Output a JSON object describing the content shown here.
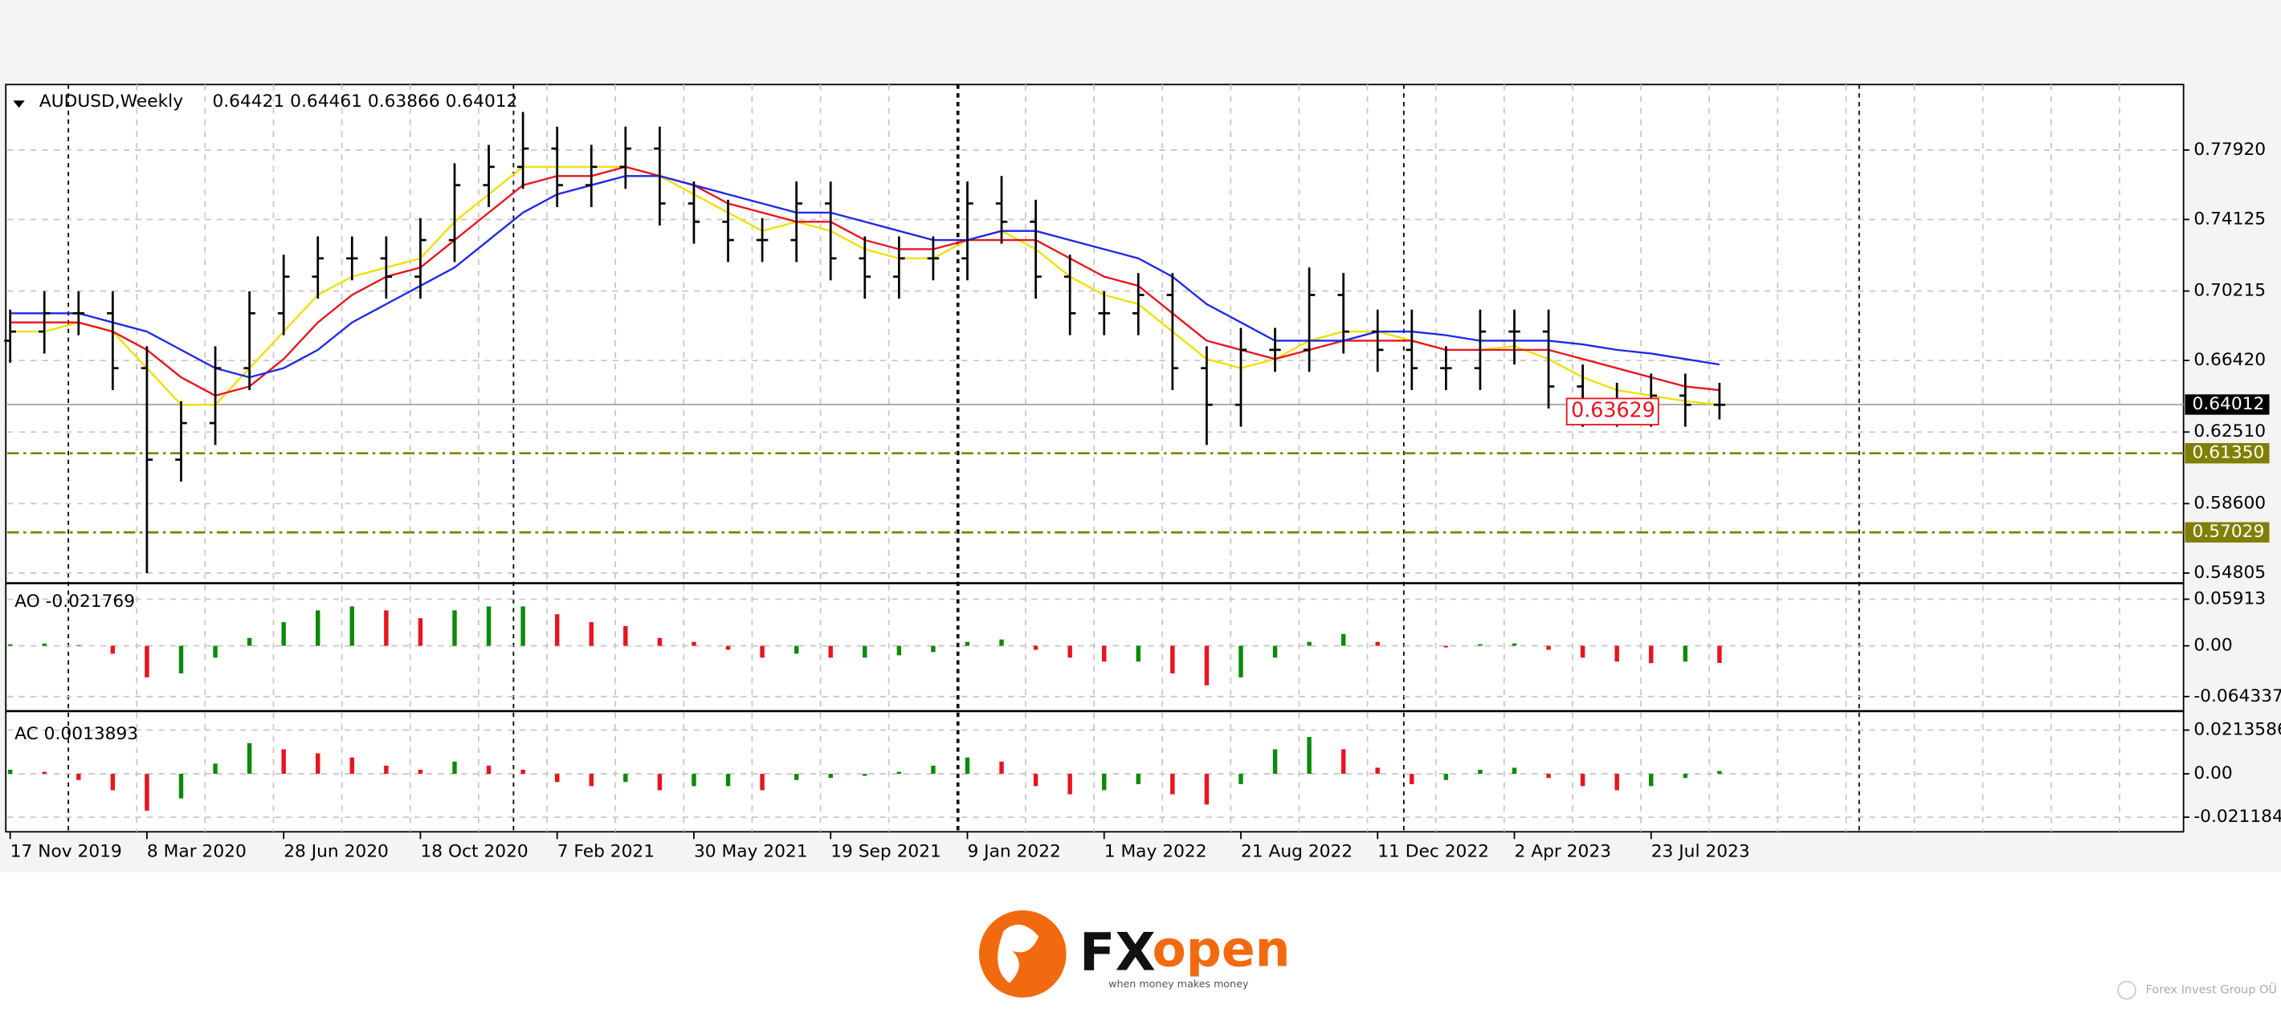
{
  "chart_data": [
    {
      "type": "ohlc",
      "symbol": "AUDUSD,Weekly",
      "ohlc_text": "0.64421 0.64461 0.63866 0.64012",
      "categories": [
        "17 Nov 2019",
        null,
        null,
        null,
        "8 Mar 2020",
        null,
        null,
        null,
        "28 Jun 2020",
        null,
        null,
        null,
        "18 Oct 2020",
        null,
        null,
        null,
        "7 Feb 2021",
        null,
        null,
        null,
        "30 May 2021",
        null,
        null,
        null,
        "19 Sep 2021",
        null,
        null,
        null,
        "9 Jan 2022",
        null,
        null,
        null,
        "1 May 2022",
        null,
        null,
        null,
        "21 Aug 2022",
        null,
        null,
        null,
        "11 Dec 2022",
        null,
        null,
        null,
        "2 Apr 2023",
        null,
        null,
        null,
        "23 Jul 2023",
        null,
        null
      ],
      "open": [
        0.675,
        0.68,
        0.69,
        0.69,
        0.66,
        0.61,
        0.63,
        0.66,
        0.69,
        0.71,
        0.72,
        0.72,
        0.71,
        0.73,
        0.76,
        0.77,
        0.78,
        0.76,
        0.77,
        0.78,
        0.75,
        0.74,
        0.73,
        0.73,
        0.75,
        0.72,
        0.71,
        0.72,
        0.72,
        0.75,
        0.74,
        0.71,
        0.69,
        0.69,
        0.7,
        0.66,
        0.64,
        0.67,
        0.67,
        0.7,
        0.68,
        0.67,
        0.66,
        0.66,
        0.68,
        0.68,
        0.65,
        0.64,
        0.64,
        0.645,
        0.64
      ],
      "high": [
        0.692,
        0.702,
        0.702,
        0.702,
        0.672,
        0.642,
        0.672,
        0.702,
        0.722,
        0.732,
        0.732,
        0.732,
        0.742,
        0.772,
        0.782,
        0.8,
        0.792,
        0.782,
        0.792,
        0.792,
        0.762,
        0.752,
        0.742,
        0.762,
        0.762,
        0.732,
        0.732,
        0.732,
        0.762,
        0.765,
        0.752,
        0.722,
        0.702,
        0.712,
        0.712,
        0.672,
        0.682,
        0.682,
        0.715,
        0.712,
        0.692,
        0.692,
        0.672,
        0.692,
        0.692,
        0.692,
        0.662,
        0.652,
        0.657,
        0.657,
        0.652
      ],
      "low": [
        0.663,
        0.668,
        0.678,
        0.648,
        0.548,
        0.598,
        0.618,
        0.648,
        0.678,
        0.698,
        0.708,
        0.698,
        0.698,
        0.718,
        0.748,
        0.758,
        0.748,
        0.748,
        0.758,
        0.738,
        0.728,
        0.718,
        0.718,
        0.718,
        0.708,
        0.698,
        0.698,
        0.708,
        0.708,
        0.728,
        0.698,
        0.678,
        0.678,
        0.678,
        0.648,
        0.618,
        0.628,
        0.658,
        0.658,
        0.668,
        0.658,
        0.648,
        0.648,
        0.648,
        0.662,
        0.638,
        0.628,
        0.628,
        0.628,
        0.628,
        0.632
      ],
      "close": [
        0.68,
        0.69,
        0.69,
        0.66,
        0.61,
        0.63,
        0.66,
        0.69,
        0.71,
        0.72,
        0.72,
        0.71,
        0.73,
        0.76,
        0.77,
        0.78,
        0.76,
        0.77,
        0.78,
        0.75,
        0.74,
        0.73,
        0.73,
        0.75,
        0.72,
        0.71,
        0.72,
        0.72,
        0.75,
        0.74,
        0.71,
        0.69,
        0.69,
        0.7,
        0.66,
        0.64,
        0.67,
        0.67,
        0.7,
        0.68,
        0.67,
        0.66,
        0.66,
        0.68,
        0.68,
        0.65,
        0.64,
        0.64,
        0.645,
        0.64,
        0.64
      ],
      "series": [
        {
          "color": "#f0e000",
          "values": [
            0.68,
            0.68,
            0.685,
            0.68,
            0.66,
            0.64,
            0.64,
            0.66,
            0.68,
            0.7,
            0.71,
            0.715,
            0.72,
            0.74,
            0.755,
            0.77,
            0.77,
            0.77,
            0.77,
            0.765,
            0.755,
            0.745,
            0.735,
            0.74,
            0.735,
            0.725,
            0.72,
            0.72,
            0.73,
            0.735,
            0.725,
            0.71,
            0.7,
            0.695,
            0.68,
            0.665,
            0.66,
            0.665,
            0.675,
            0.68,
            0.68,
            0.675,
            0.67,
            0.67,
            0.672,
            0.665,
            0.655,
            0.648,
            0.645,
            0.642,
            0.64
          ]
        },
        {
          "color": "#e8141e",
          "values": [
            0.685,
            0.685,
            0.685,
            0.68,
            0.67,
            0.655,
            0.645,
            0.65,
            0.665,
            0.685,
            0.7,
            0.71,
            0.715,
            0.73,
            0.745,
            0.76,
            0.765,
            0.765,
            0.77,
            0.765,
            0.76,
            0.75,
            0.745,
            0.74,
            0.74,
            0.73,
            0.725,
            0.725,
            0.73,
            0.73,
            0.73,
            0.72,
            0.71,
            0.705,
            0.69,
            0.675,
            0.67,
            0.665,
            0.67,
            0.675,
            0.675,
            0.675,
            0.67,
            0.67,
            0.67,
            0.67,
            0.665,
            0.66,
            0.655,
            0.65,
            0.648
          ]
        },
        {
          "color": "#1e28e6",
          "values": [
            0.69,
            0.69,
            0.69,
            0.685,
            0.68,
            0.67,
            0.66,
            0.655,
            0.66,
            0.67,
            0.685,
            0.695,
            0.705,
            0.715,
            0.73,
            0.745,
            0.755,
            0.76,
            0.765,
            0.765,
            0.76,
            0.755,
            0.75,
            0.745,
            0.745,
            0.74,
            0.735,
            0.73,
            0.73,
            0.735,
            0.735,
            0.73,
            0.725,
            0.72,
            0.71,
            0.695,
            0.685,
            0.675,
            0.675,
            0.675,
            0.68,
            0.68,
            0.678,
            0.675,
            0.675,
            0.675,
            0.673,
            0.67,
            0.668,
            0.665,
            0.662
          ]
        }
      ],
      "ylim": [
        0.5433,
        0.8134
      ],
      "yticks": [
        {
          "value": 0.7792,
          "label": "0.77920"
        },
        0.74125,
        0.70215,
        {
          "value": 0.6642,
          "label": "0.66420"
        },
        {
          "value": 0.6251,
          "label": "0.62510"
        },
        {
          "value": 0.586,
          "label": "0.58600"
        },
        0.54805
      ],
      "current_price": 0.64012,
      "levels": [
        {
          "value": 0.6135,
          "label": "0.61350"
        },
        0.57029
      ],
      "low_marker": 0.63629,
      "grid": true
    },
    {
      "type": "bar",
      "label": "AO -0.021769",
      "values": [
        0.002,
        0.003,
        0.001,
        -0.01,
        -0.04,
        -0.035,
        -0.015,
        0.01,
        0.03,
        0.045,
        0.05,
        0.045,
        0.035,
        0.045,
        0.05,
        0.05,
        0.04,
        0.03,
        0.025,
        0.01,
        0.005,
        -0.005,
        -0.015,
        -0.01,
        -0.015,
        -0.015,
        -0.012,
        -0.008,
        0.005,
        0.008,
        -0.005,
        -0.015,
        -0.02,
        -0.02,
        -0.035,
        -0.05,
        -0.04,
        -0.015,
        0.005,
        0.015,
        0.005,
        0.0,
        -0.002,
        0.002,
        0.003,
        -0.005,
        -0.015,
        -0.02,
        -0.022,
        -0.02,
        -0.021769
      ],
      "ylim": [
        -0.0773,
        0.0739
      ],
      "yticks": [
        0.05913,
        {
          "value": 0,
          "label": "0.00"
        },
        -0.064337
      ],
      "colors": [
        "#0a8a0a",
        "#e8141e"
      ]
    },
    {
      "type": "bar",
      "label": "AC 0.0013893",
      "values": [
        0.002,
        0.001,
        -0.003,
        -0.008,
        -0.018,
        -0.012,
        0.005,
        0.015,
        0.012,
        0.01,
        0.008,
        0.004,
        0.002,
        0.006,
        0.004,
        0.002,
        -0.004,
        -0.006,
        -0.004,
        -0.008,
        -0.006,
        -0.006,
        -0.008,
        -0.003,
        -0.002,
        -0.001,
        0.001,
        0.004,
        0.008,
        0.006,
        -0.006,
        -0.01,
        -0.008,
        -0.005,
        -0.01,
        -0.015,
        -0.005,
        0.012,
        0.018,
        0.012,
        0.003,
        -0.005,
        -0.003,
        0.002,
        0.003,
        -0.002,
        -0.006,
        -0.008,
        -0.006,
        -0.002,
        0.0013893
      ],
      "ylim": [
        -0.0276,
        0.0285
      ],
      "yticks": [
        0.0213586,
        {
          "value": 0,
          "label": "0.00"
        },
        -0.0211849
      ],
      "colors": [
        "#0a8a0a",
        "#e8141e"
      ]
    }
  ],
  "footer": {
    "brand_fx": "FX",
    "brand_open": "open",
    "tagline": "when money makes money",
    "company": "Forex Invest Group OÜ"
  }
}
